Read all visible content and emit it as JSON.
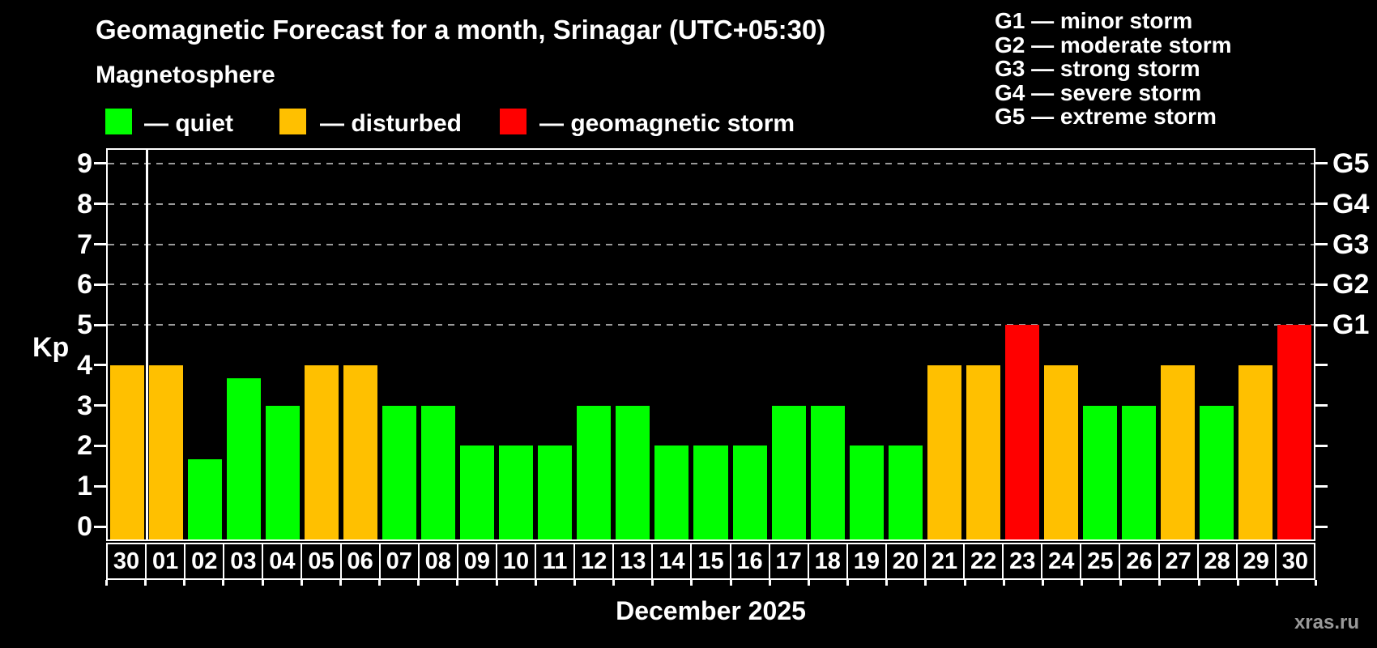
{
  "title": "Geomagnetic Forecast for a month, Srinagar (UTC+05:30)",
  "subtitle": "Magnetosphere",
  "legend": {
    "items": [
      {
        "label": "— quiet",
        "status": "quiet",
        "color": "#00ff00"
      },
      {
        "label": "— disturbed",
        "status": "disturbed",
        "color": "#ffc000"
      },
      {
        "label": "— geomagnetic storm",
        "status": "storm",
        "color": "#ff0000"
      }
    ]
  },
  "storm_scale": {
    "items": [
      {
        "label": "G1 — minor storm"
      },
      {
        "label": "G2 — moderate storm"
      },
      {
        "label": "G3 — strong storm"
      },
      {
        "label": "G4 — severe storm"
      },
      {
        "label": "G5 — extreme storm"
      }
    ]
  },
  "chart_data": {
    "type": "bar",
    "title": "Geomagnetic Forecast for a month, Srinagar (UTC+05:30)",
    "ylabel": "Kp",
    "xlabel": "December 2025",
    "ylim": [
      0,
      9
    ],
    "yticks": [
      0,
      1,
      2,
      3,
      4,
      5,
      6,
      7,
      8,
      9
    ],
    "gridlines_kp": [
      5,
      6,
      7,
      8,
      9
    ],
    "grid": "dashed, only at storm levels G1–G5",
    "right_axis": [
      {
        "label": "G1",
        "kp": 5
      },
      {
        "label": "G2",
        "kp": 6
      },
      {
        "label": "G3",
        "kp": 7
      },
      {
        "label": "G4",
        "kp": 8
      },
      {
        "label": "G5",
        "kp": 9
      }
    ],
    "categories": [
      "30",
      "01",
      "02",
      "03",
      "04",
      "05",
      "06",
      "07",
      "08",
      "09",
      "10",
      "11",
      "12",
      "13",
      "14",
      "15",
      "16",
      "17",
      "18",
      "19",
      "20",
      "21",
      "22",
      "23",
      "24",
      "25",
      "26",
      "27",
      "28",
      "29",
      "30"
    ],
    "values": [
      4,
      4,
      1.67,
      3.67,
      3,
      4,
      4,
      3,
      3,
      2,
      2,
      2,
      3,
      3,
      2,
      2,
      2,
      3,
      3,
      2,
      2,
      4,
      4,
      5,
      4,
      3,
      3,
      4,
      3,
      4,
      5
    ],
    "statuses": [
      "disturbed",
      "disturbed",
      "quiet",
      "quiet",
      "quiet",
      "disturbed",
      "disturbed",
      "quiet",
      "quiet",
      "quiet",
      "quiet",
      "quiet",
      "quiet",
      "quiet",
      "quiet",
      "quiet",
      "quiet",
      "quiet",
      "quiet",
      "quiet",
      "quiet",
      "disturbed",
      "disturbed",
      "storm",
      "disturbed",
      "quiet",
      "quiet",
      "disturbed",
      "quiet",
      "disturbed",
      "storm"
    ],
    "colors": {
      "quiet": "#00ff00",
      "disturbed": "#ffc000",
      "storm": "#ff0000"
    },
    "month_separator_after_index": 0
  },
  "xaxis_title": "December 2025",
  "watermark": "xras.ru"
}
